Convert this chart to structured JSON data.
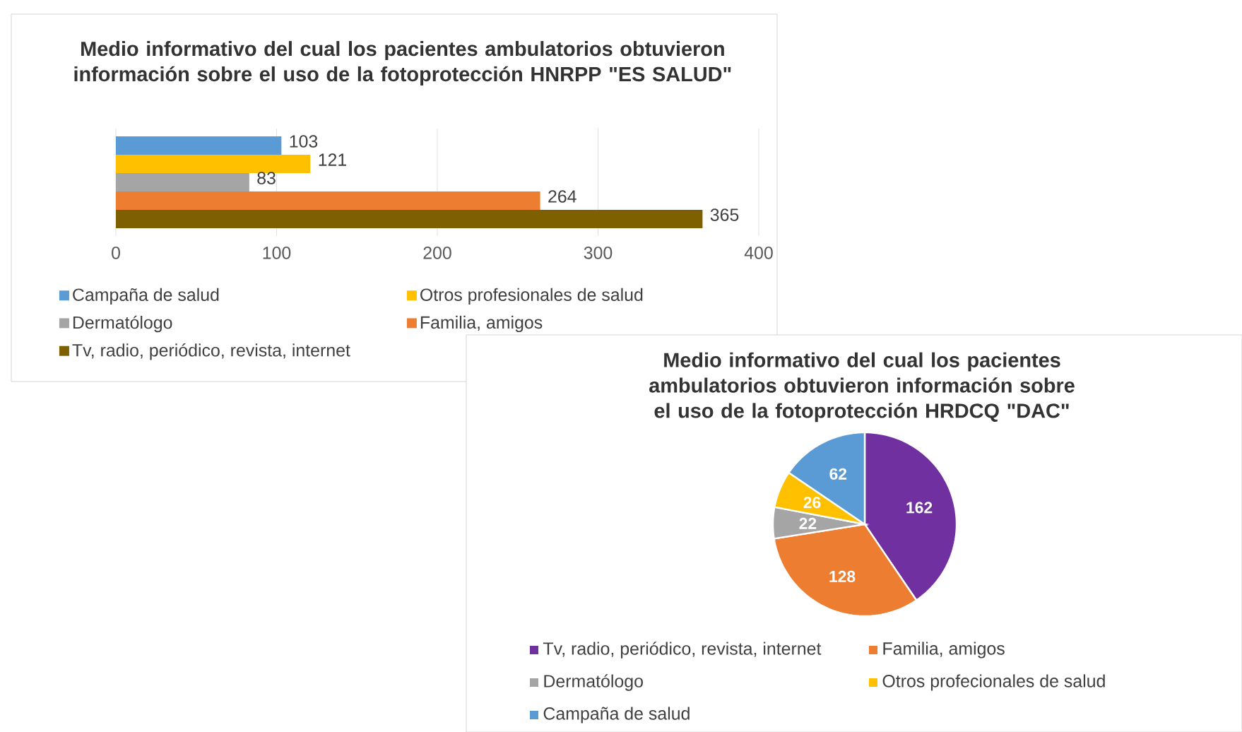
{
  "chart_data": [
    {
      "type": "bar",
      "orientation": "horizontal",
      "title": "Medio informativo del cual los pacientes ambulatorios obtuvieron información sobre el uso de la fotoprotección HNRPP \"ES SALUD\"",
      "categories": [
        null
      ],
      "series": [
        {
          "name": "Campaña de salud",
          "color": "#5b9bd5",
          "values": [
            103
          ]
        },
        {
          "name": "Otros profesionales de salud",
          "color": "#ffc000",
          "values": [
            121
          ]
        },
        {
          "name": "Dermatólogo",
          "color": "#a5a5a5",
          "values": [
            83
          ]
        },
        {
          "name": "Familia, amigos",
          "color": "#ed7d31",
          "values": [
            264
          ]
        },
        {
          "name": "Tv, radio, periódico, revista, internet",
          "color": "#7f6000",
          "values": [
            365
          ]
        }
      ],
      "xlim": [
        0,
        400
      ],
      "xticks": [
        0,
        100,
        200,
        300,
        400
      ],
      "grid": "x",
      "data_labels": true,
      "legend": "bottom"
    },
    {
      "type": "pie",
      "title": "Medio informativo del cual los pacientes ambulatorios obtuvieron información sobre el uso de la fotoprotección HRDCQ \"DAC\"",
      "categories": [
        "Tv, radio, periódico, revista, internet",
        "Familia, amigos",
        "Dermatólogo",
        "Otros profecionales de salud",
        "Campaña de salud"
      ],
      "values": [
        162,
        128,
        22,
        26,
        62
      ],
      "colors": [
        "#7030a0",
        "#ed7d31",
        "#a5a5a5",
        "#ffc000",
        "#5b9bd5"
      ],
      "data_labels": true,
      "legend": "bottom"
    }
  ]
}
